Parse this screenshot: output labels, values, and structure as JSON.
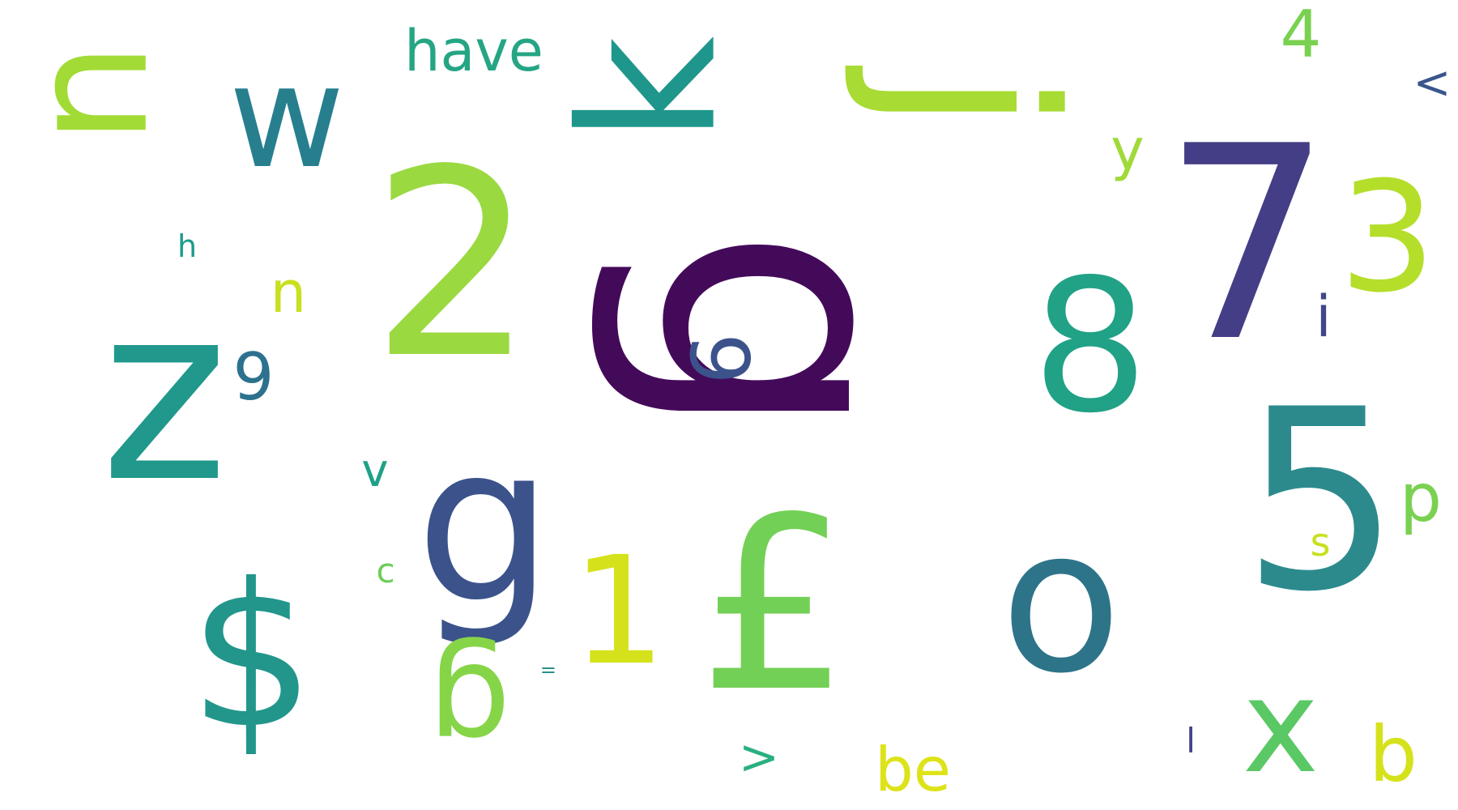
{
  "words": [
    {
      "text": "g",
      "color": "#440a5a",
      "rotate": 90
    },
    {
      "text": "o",
      "color": "#2e7489",
      "rotate": 0
    },
    {
      "text": "7",
      "color": "#433e85",
      "rotate": 0
    },
    {
      "text": "z",
      "color": "#21988c",
      "rotate": 0
    },
    {
      "text": "2",
      "color": "#9ad940",
      "rotate": 0
    },
    {
      "text": "1",
      "color": "#d5e21b",
      "rotate": 0
    },
    {
      "text": "£",
      "color": "#73d056",
      "rotate": 0
    },
    {
      "text": "$",
      "color": "#22968b",
      "rotate": 0
    },
    {
      "text": "5",
      "color": "#2c8a8c",
      "rotate": 0
    },
    {
      "text": "8",
      "color": "#21a185",
      "rotate": 0
    },
    {
      "text": "g",
      "color": "#3b528b",
      "rotate": 0
    },
    {
      "text": "u",
      "color": "#a2db36",
      "rotate": 90
    },
    {
      "text": "x",
      "color": "#5ac864",
      "rotate": 0
    },
    {
      "text": "w",
      "color": "#277f8e",
      "rotate": 0
    },
    {
      "text": "j",
      "color": "#a8db34",
      "rotate": 90
    },
    {
      "text": "g",
      "color": "#86d549",
      "rotate": 180
    },
    {
      "text": "3",
      "color": "#b5de2b",
      "rotate": 0
    },
    {
      "text": "k",
      "color": "#1f968b",
      "rotate": 270
    },
    {
      "text": "have",
      "color": "#25a584",
      "rotate": 0
    },
    {
      "text": "4",
      "color": "#7ad151",
      "rotate": 0
    },
    {
      "text": "b",
      "color": "#d5e21b",
      "rotate": 0
    },
    {
      "text": "be",
      "color": "#dde318",
      "rotate": 0
    },
    {
      "text": "n",
      "color": "#c8e020",
      "rotate": 0
    },
    {
      "text": "p",
      "color": "#7ad151",
      "rotate": 0
    },
    {
      "text": "9",
      "color": "#3b528b",
      "rotate": 90
    },
    {
      "text": "9",
      "color": "#2c718e",
      "rotate": 0
    },
    {
      "text": "i",
      "color": "#404688",
      "rotate": 0
    },
    {
      "text": "s",
      "color": "#c8e020",
      "rotate": 0
    },
    {
      "text": ">",
      "color": "#2ab07f",
      "rotate": 0
    },
    {
      "text": "<",
      "color": "#39568c",
      "rotate": 0
    },
    {
      "text": "v",
      "color": "#1fa187",
      "rotate": 0
    },
    {
      "text": "c",
      "color": "#6ccd5a",
      "rotate": 0
    },
    {
      "text": "y",
      "color": "#a0da39",
      "rotate": 0
    },
    {
      "text": "h",
      "color": "#1e9b8a",
      "rotate": 0
    },
    {
      "text": "l",
      "color": "#414487",
      "rotate": 0
    },
    {
      "text": "=",
      "color": "#2a8f8c",
      "rotate": 0
    }
  ]
}
